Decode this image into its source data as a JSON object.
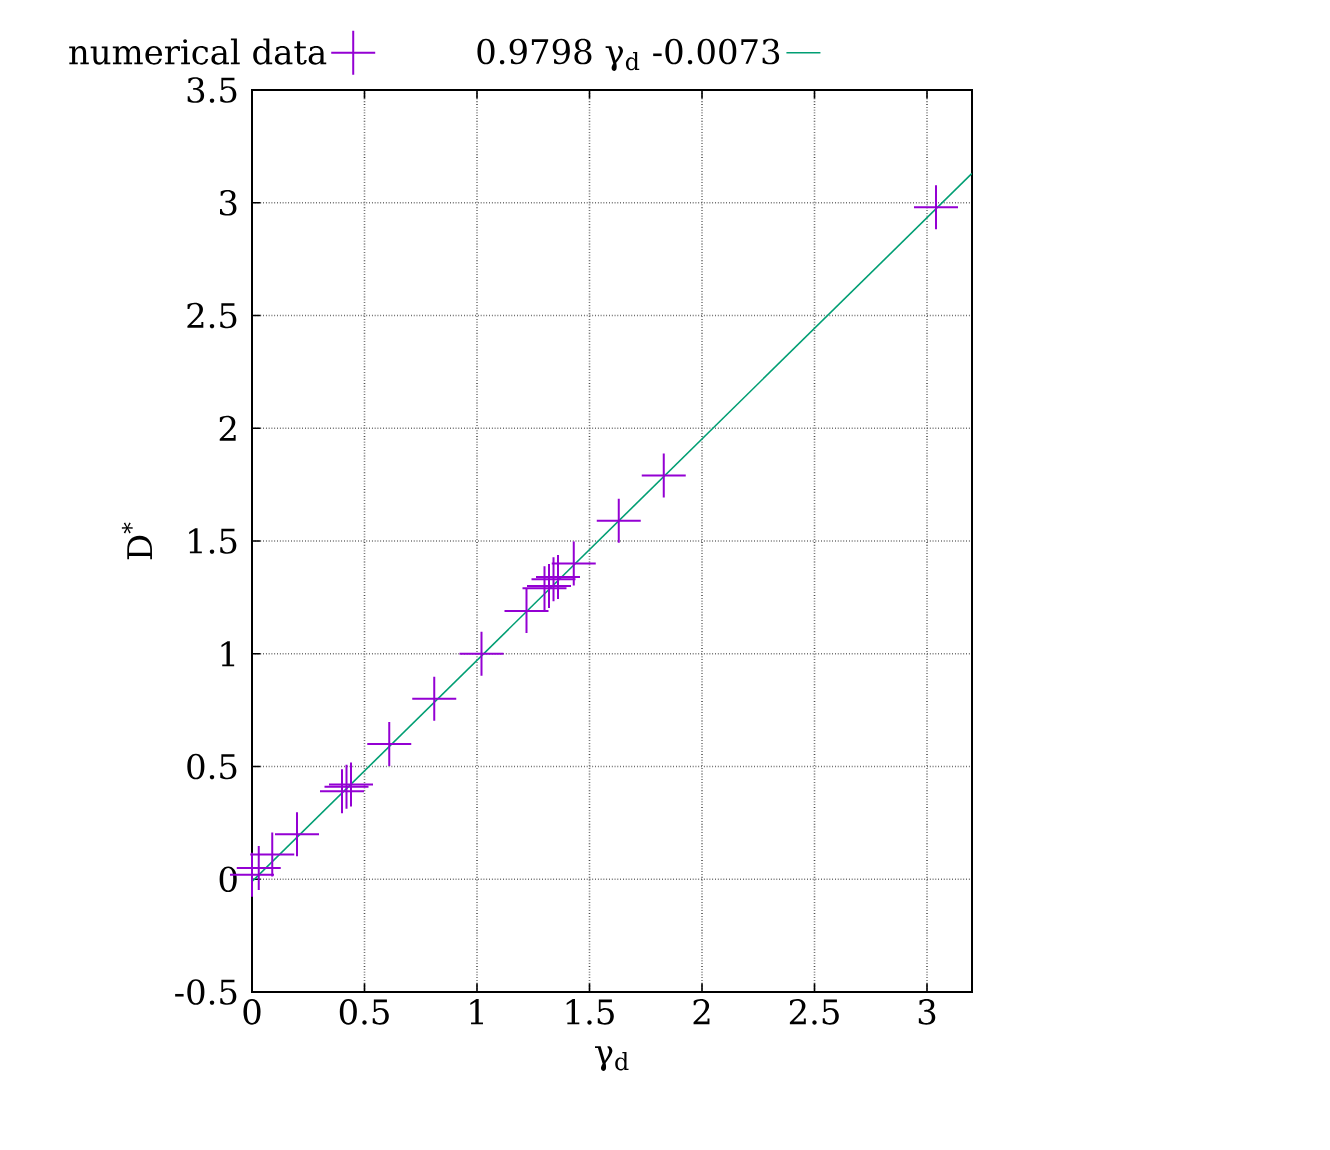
{
  "chart_data": {
    "type": "scatter",
    "xlabel": "γ$_{d}$",
    "ylabel": "D$^{*}$",
    "xlim": [
      0,
      3.2
    ],
    "ylim": [
      -0.5,
      3.5
    ],
    "xticks": [
      0,
      0.5,
      1,
      1.5,
      2,
      2.5,
      3
    ],
    "yticks": [
      -0.5,
      0,
      0.5,
      1,
      1.5,
      2,
      2.5,
      3,
      3.5
    ],
    "grid": true,
    "legend": "top",
    "series": [
      {
        "name": "numerical data",
        "marker": "cross",
        "color": "#9400d3",
        "x": [
          0.0,
          0.03,
          0.09,
          0.2,
          0.4,
          0.42,
          0.44,
          0.61,
          0.81,
          1.02,
          1.22,
          1.28,
          1.3,
          1.32,
          1.34,
          1.36,
          1.43,
          1.63,
          1.83,
          3.04
        ],
        "values": [
          0.02,
          0.05,
          0.11,
          0.2,
          0.39,
          0.41,
          0.42,
          0.6,
          0.8,
          1.0,
          1.19,
          null,
          1.29,
          1.3,
          1.33,
          1.34,
          1.4,
          1.59,
          1.79,
          2.98
        ]
      },
      {
        "name": "0.9798 γ$_{d}$  -0.0073",
        "type": "line",
        "marker": "none",
        "line_style": "solid",
        "color": "#009e73",
        "x": [
          0,
          3.2
        ],
        "values": [
          -0.01,
          3.13
        ]
      }
    ]
  }
}
